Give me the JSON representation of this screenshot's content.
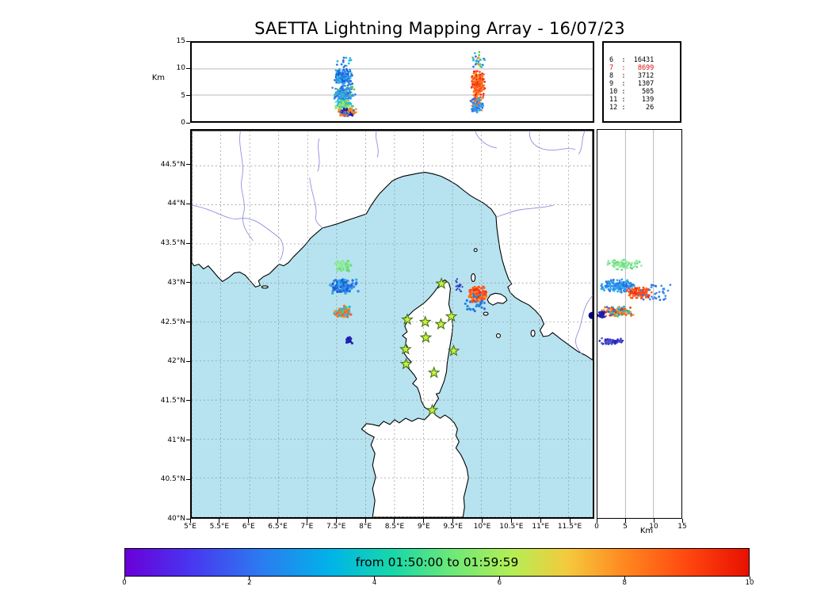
{
  "title": "SAETTA Lightning Mapping Array - 16/07/23",
  "colors": {
    "sea": "#b7e3f0",
    "land": "#ffffff",
    "coast": "#000000",
    "river": "#8f8fdf",
    "grid_map": "#8f8f8f",
    "grid_panel": "#b8b8b8",
    "star_fill": "#c8f03c",
    "star_edge": "#44711c",
    "count_highlight": "#dd1111",
    "tick": "#000000"
  },
  "axes": {
    "alt_label": "Km",
    "alt_ticks": [
      {
        "v": 0,
        "label": "0"
      },
      {
        "v": 5,
        "label": "5"
      },
      {
        "v": 10,
        "label": "10"
      },
      {
        "v": 15,
        "label": "15"
      }
    ],
    "lat_ticks": [
      {
        "v": 44.5,
        "label": "44.5°N"
      },
      {
        "v": 44,
        "label": "44°N"
      },
      {
        "v": 43.5,
        "label": "43.5°N"
      },
      {
        "v": 43,
        "label": "43°N"
      },
      {
        "v": 42.5,
        "label": "42.5°N"
      },
      {
        "v": 42,
        "label": "42°N"
      },
      {
        "v": 41.5,
        "label": "41.5°N"
      },
      {
        "v": 41,
        "label": "41°N"
      },
      {
        "v": 40.5,
        "label": "40.5°N"
      },
      {
        "v": 40,
        "label": "40°N"
      }
    ],
    "lon_ticks": [
      {
        "v": 5,
        "label": "5°E"
      },
      {
        "v": 5.5,
        "label": "5.5°E"
      },
      {
        "v": 6,
        "label": "6°E"
      },
      {
        "v": 6.5,
        "label": "6.5°E"
      },
      {
        "v": 7,
        "label": "7°E"
      },
      {
        "v": 7.5,
        "label": "7.5°E"
      },
      {
        "v": 8,
        "label": "8°E"
      },
      {
        "v": 8.5,
        "label": "8.5°E"
      },
      {
        "v": 9,
        "label": "9°E"
      },
      {
        "v": 9.5,
        "label": "9.5°E"
      },
      {
        "v": 10,
        "label": "10°E"
      },
      {
        "v": 10.5,
        "label": "10.5°E"
      },
      {
        "v": 11,
        "label": "11°E"
      },
      {
        "v": 11.5,
        "label": "11.5°E"
      }
    ]
  },
  "colorbar": {
    "label": "from 01:50:00 to 01:59:59",
    "ticks": [
      {
        "v": 0,
        "label": "0"
      },
      {
        "v": 2,
        "label": "2"
      },
      {
        "v": 4,
        "label": "4"
      },
      {
        "v": 6,
        "label": "6"
      },
      {
        "v": 8,
        "label": "8"
      },
      {
        "v": 10,
        "label": "10"
      }
    ],
    "stops": [
      {
        "p": 0,
        "c": "#6a00d8"
      },
      {
        "p": 10,
        "c": "#4a33f0"
      },
      {
        "p": 22,
        "c": "#2b7cf0"
      },
      {
        "p": 33,
        "c": "#00b4e8"
      },
      {
        "p": 43,
        "c": "#18d8a8"
      },
      {
        "p": 52,
        "c": "#6ae87a"
      },
      {
        "p": 62,
        "c": "#b4ee55"
      },
      {
        "p": 71,
        "c": "#f5c93c"
      },
      {
        "p": 80,
        "c": "#ff8820"
      },
      {
        "p": 90,
        "c": "#ff4810"
      },
      {
        "p": 100,
        "c": "#e81000"
      }
    ]
  },
  "chart_data": {
    "type": "scatter",
    "description": "Lightning VHF source locations over the Corsica region: plan view map (lon/lat), altitude-vs-longitude panel (top), altitude-vs-latitude panel (right); points colored by time within the 01:50:00-01:59:59 window; green stars are LMA stations.",
    "map_extent": {
      "lon_min": 5.0,
      "lon_max": 11.92,
      "lat_min": 40.0,
      "lat_max": 44.95
    },
    "altitude_range_km": [
      0,
      15
    ],
    "colorbar_range": [
      0,
      10
    ],
    "counts_table": [
      {
        "level": "6",
        "count": 16431,
        "highlight": false
      },
      {
        "level": "7",
        "count": 8699,
        "highlight": true
      },
      {
        "level": "8",
        "count": 3712,
        "highlight": false
      },
      {
        "level": "9",
        "count": 1307,
        "highlight": false
      },
      {
        "level": "10",
        "count": 505,
        "highlight": false
      },
      {
        "level": "11",
        "count": 139,
        "highlight": false
      },
      {
        "level": "12",
        "count": 26,
        "highlight": false
      }
    ],
    "stations_lonlat": [
      [
        9.31,
        42.99
      ],
      [
        8.72,
        42.53
      ],
      [
        9.03,
        42.5
      ],
      [
        9.3,
        42.47
      ],
      [
        9.48,
        42.57
      ],
      [
        9.04,
        42.3
      ],
      [
        8.69,
        42.15
      ],
      [
        9.52,
        42.13
      ],
      [
        8.7,
        41.96
      ],
      [
        9.18,
        41.85
      ],
      [
        9.15,
        41.37
      ]
    ],
    "clusters": [
      {
        "panel": "map",
        "lon": [
          7.45,
          7.76
        ],
        "lat": [
          43.15,
          43.31
        ],
        "colors": [
          "#8ce99a",
          "#69db7c",
          "#98ecae"
        ],
        "n": 80,
        "size": 1.7
      },
      {
        "panel": "map",
        "lon": [
          7.36,
          7.89
        ],
        "lat": [
          42.86,
          43.06
        ],
        "colors": [
          "#2b6fe8",
          "#3b8ff0",
          "#22b8e6",
          "#1c5ed0"
        ],
        "n": 120,
        "size": 1.7
      },
      {
        "panel": "map",
        "lon": [
          7.45,
          7.75
        ],
        "lat": [
          42.55,
          42.72
        ],
        "colors": [
          "#ff922b",
          "#ff7518",
          "#f5603a",
          "#22b8e6",
          "#51cf66"
        ],
        "n": 90,
        "size": 1.7
      },
      {
        "panel": "map",
        "lon": [
          7.66,
          7.78
        ],
        "lat": [
          42.21,
          42.31
        ],
        "colors": [
          "#1a1aa6",
          "#2525bb"
        ],
        "n": 20,
        "size": 1.6
      },
      {
        "panel": "map",
        "lon": [
          9.78,
          10.1
        ],
        "lat": [
          42.74,
          42.96
        ],
        "colors": [
          "#ff4f1f",
          "#f03010",
          "#ff6b1a",
          "#ff8c2a"
        ],
        "n": 130,
        "size": 1.7
      },
      {
        "panel": "map",
        "lon": [
          9.72,
          10.06
        ],
        "lat": [
          42.64,
          42.86
        ],
        "colors": [
          "#2b6fe8",
          "#2388d8"
        ],
        "n": 24,
        "size": 1.6,
        "uniform": true
      },
      {
        "panel": "map",
        "lon": [
          9.56,
          9.67
        ],
        "lat": [
          42.88,
          43.08
        ],
        "colors": [
          "#2233bb"
        ],
        "n": 16,
        "size": 1.1,
        "uniform": true
      },
      {
        "panel": "map",
        "lon": [
          11.86,
          11.93
        ],
        "lat": [
          42.55,
          42.63
        ],
        "colors": [
          "#00008b"
        ],
        "n": 1,
        "size": 4.5
      },
      {
        "panel": "top",
        "lon": [
          7.46,
          7.78
        ],
        "alt": [
          6.5,
          10.3
        ],
        "colors": [
          "#2b6fe8",
          "#3b8ff0",
          "#1c5ed0",
          "#22b8e6"
        ],
        "n": 160
      },
      {
        "panel": "top",
        "lon": [
          7.42,
          7.83
        ],
        "alt": [
          3.5,
          7.0
        ],
        "colors": [
          "#22b8e6",
          "#3b8ff0",
          "#2b6fe8",
          "#51cf66"
        ],
        "n": 210
      },
      {
        "panel": "top",
        "lon": [
          7.45,
          7.8
        ],
        "alt": [
          2.0,
          4.2
        ],
        "colors": [
          "#51cf66",
          "#8ce99a",
          "#22b8e6",
          "#b2e05a"
        ],
        "n": 120
      },
      {
        "panel": "top",
        "lon": [
          7.5,
          7.86
        ],
        "alt": [
          0.8,
          2.5
        ],
        "colors": [
          "#ff922b",
          "#ff7518",
          "#1a1aa6",
          "#2b6fe8"
        ],
        "n": 120
      },
      {
        "panel": "top",
        "lon": [
          7.5,
          7.76
        ],
        "alt": [
          10.2,
          12.2
        ],
        "colors": [
          "#2b6fe8",
          "#22b8e6"
        ],
        "n": 14,
        "uniform": true
      },
      {
        "panel": "top",
        "lon": [
          9.82,
          10.07
        ],
        "alt": [
          4.0,
          10.0
        ],
        "colors": [
          "#ff4f1f",
          "#ff6b1a",
          "#f03010",
          "#ff922b"
        ],
        "n": 200
      },
      {
        "panel": "top",
        "lon": [
          9.8,
          10.04
        ],
        "alt": [
          1.5,
          4.8
        ],
        "colors": [
          "#2b6fe8",
          "#3b8ff0",
          "#22b8e6",
          "#ff6b1a"
        ],
        "n": 100
      },
      {
        "panel": "top",
        "lon": [
          9.84,
          10.06
        ],
        "alt": [
          10.0,
          13.3
        ],
        "colors": [
          "#2b6fe8",
          "#ff922b",
          "#51cf66",
          "#22b8e6"
        ],
        "n": 26,
        "uniform": true
      },
      {
        "panel": "right",
        "alt": [
          1.5,
          8.0
        ],
        "lat": [
          43.16,
          43.3
        ],
        "colors": [
          "#8ce99a",
          "#69db7c",
          "#98ecae"
        ],
        "n": 100
      },
      {
        "panel": "right",
        "alt": [
          0.5,
          7.0
        ],
        "lat": [
          42.87,
          43.05
        ],
        "colors": [
          "#2b6fe8",
          "#3b8ff0",
          "#22b8e6"
        ],
        "n": 150
      },
      {
        "panel": "right",
        "alt": [
          5.0,
          9.8
        ],
        "lat": [
          42.8,
          42.95
        ],
        "colors": [
          "#ff4f1f",
          "#ff6b1a",
          "#f03010"
        ],
        "n": 130
      },
      {
        "panel": "right",
        "alt": [
          7.0,
          13.0
        ],
        "lat": [
          42.78,
          42.98
        ],
        "colors": [
          "#2b6fe8",
          "#3b8ff0"
        ],
        "n": 32,
        "uniform": true
      },
      {
        "panel": "right",
        "alt": [
          0.5,
          6.5
        ],
        "lat": [
          42.56,
          42.7
        ],
        "colors": [
          "#22b8e6",
          "#51cf66",
          "#ff922b",
          "#ff6b1a",
          "#2b6fe8",
          "#f03010"
        ],
        "n": 150
      },
      {
        "panel": "right",
        "alt": [
          0.0,
          1.3
        ],
        "lat": [
          42.55,
          42.66
        ],
        "colors": [
          "#1a1aa6",
          "#2525bb"
        ],
        "n": 45
      },
      {
        "panel": "right",
        "alt": [
          0.3,
          5.0
        ],
        "lat": [
          42.21,
          42.3
        ],
        "colors": [
          "#2525bb",
          "#4646cc",
          "#5a5ad2"
        ],
        "n": 75
      }
    ]
  }
}
